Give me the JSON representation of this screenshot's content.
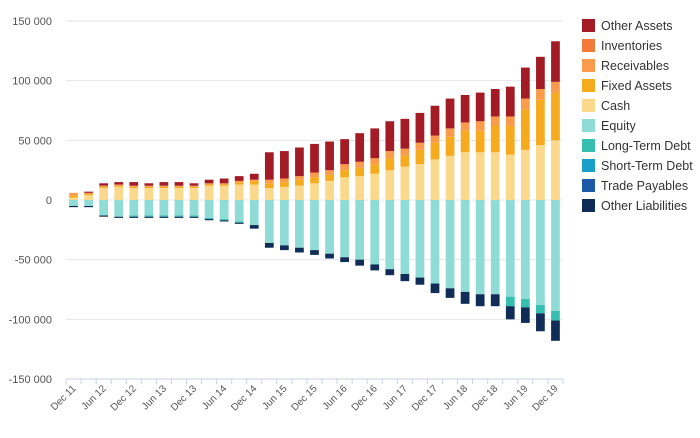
{
  "chart_data": {
    "type": "bar",
    "stacked": true,
    "title": "",
    "xlabel": "",
    "ylabel": "",
    "ylim": [
      -150000,
      150000
    ],
    "y_ticks": [
      150000,
      100000,
      50000,
      0,
      -50000,
      -100000,
      -150000
    ],
    "y_tick_labels": [
      "150 000",
      "100 000",
      "50 000",
      "0",
      "-50 000",
      "-100 000",
      "-150 000"
    ],
    "grid": true,
    "legend_position": "right",
    "categories": [
      "Dec 11",
      "Mar 12",
      "Jun 12",
      "Sep 12",
      "Dec 12",
      "Mar 13",
      "Jun 13",
      "Sep 13",
      "Dec 13",
      "Mar 14",
      "Jun 14",
      "Sep 14",
      "Dec 14",
      "Mar 15",
      "Jun 15",
      "Sep 15",
      "Dec 15",
      "Mar 16",
      "Jun 16",
      "Sep 16",
      "Dec 16",
      "Mar 17",
      "Jun 17",
      "Sep 17",
      "Dec 17",
      "Mar 18",
      "Jun 18",
      "Sep 18",
      "Dec 18",
      "Mar 19",
      "Jun 19",
      "Sep 19",
      "Dec 19"
    ],
    "x_tick_labels": [
      "Dec 11",
      "Jun 12",
      "Dec 12",
      "Jun 13",
      "Dec 13",
      "Jun 14",
      "Dec 14",
      "Jun 15",
      "Dec 15",
      "Jun 16",
      "Dec 16",
      "Jun 17",
      "Dec 17",
      "Jun 18",
      "Dec 18",
      "Jun 19",
      "Dec 19"
    ],
    "legend_order": [
      "Other Assets",
      "Inventories",
      "Receivables",
      "Fixed Assets",
      "Cash",
      "Equity",
      "Long-Term Debt",
      "Short-Term Debt",
      "Trade Payables",
      "Other Liabilities"
    ],
    "series": [
      {
        "name": "Cash",
        "color": "#fad88c",
        "values": [
          2000,
          4000,
          10000,
          11000,
          10000,
          10000,
          10000,
          10000,
          10000,
          12000,
          12000,
          13000,
          13000,
          10000,
          11000,
          12000,
          14000,
          16000,
          19000,
          20000,
          22000,
          25000,
          28000,
          30000,
          34000,
          37000,
          40000,
          40000,
          40000,
          38000,
          42000,
          46000,
          50000
        ]
      },
      {
        "name": "Fixed Assets",
        "color": "#f5ab1d",
        "values": [
          2000,
          1000,
          1000,
          1000,
          1000,
          1000,
          1000,
          1000,
          1000,
          1000,
          1000,
          2000,
          3000,
          4000,
          4000,
          5000,
          5000,
          5000,
          6000,
          7000,
          8000,
          10000,
          9000,
          12000,
          14000,
          16000,
          18000,
          18000,
          22000,
          24000,
          34000,
          38000,
          40000
        ]
      },
      {
        "name": "Receivables",
        "color": "#f99b4b",
        "values": [
          2000,
          1000,
          1000,
          1000,
          1000,
          1000,
          1000,
          1000,
          1000,
          1000,
          1000,
          1000,
          1000,
          3000,
          3000,
          3000,
          4000,
          4000,
          5000,
          5000,
          5000,
          6000,
          6000,
          6000,
          6000,
          7000,
          7000,
          8000,
          8000,
          8000,
          9000,
          9000,
          9000
        ]
      },
      {
        "name": "Inventories",
        "color": "#f47a3c",
        "values": [
          0,
          0,
          0,
          0,
          0,
          0,
          0,
          0,
          0,
          0,
          0,
          0,
          0,
          0,
          0,
          0,
          0,
          0,
          0,
          0,
          0,
          0,
          0,
          0,
          0,
          0,
          0,
          0,
          0,
          0,
          0,
          0,
          0
        ]
      },
      {
        "name": "Other Assets",
        "color": "#a31c25",
        "values": [
          0,
          1000,
          2000,
          2000,
          3000,
          2000,
          3000,
          3000,
          2000,
          3000,
          4000,
          4000,
          5000,
          23000,
          23000,
          24000,
          24000,
          24000,
          21000,
          24000,
          25000,
          25000,
          25000,
          25000,
          25000,
          25000,
          23000,
          24000,
          23000,
          25000,
          26000,
          27000,
          34000
        ]
      },
      {
        "name": "Equity",
        "color": "#8fdcd6",
        "values": [
          -5000,
          -5000,
          -13000,
          -14000,
          -13000,
          -13000,
          -13000,
          -13000,
          -13000,
          -15000,
          -16000,
          -18000,
          -21000,
          -36000,
          -38000,
          -40000,
          -42000,
          -45000,
          -48000,
          -50000,
          -54000,
          -58000,
          -62000,
          -65000,
          -70000,
          -74000,
          -77000,
          -79000,
          -79000,
          -81000,
          -83000,
          -88000,
          -93000
        ]
      },
      {
        "name": "Long-Term Debt",
        "color": "#36bfb0",
        "values": [
          0,
          0,
          0,
          0,
          -1000,
          -1000,
          -1000,
          -1000,
          -1000,
          -1000,
          -1000,
          -1000,
          0,
          0,
          0,
          0,
          0,
          0,
          0,
          0,
          0,
          0,
          0,
          0,
          0,
          0,
          0,
          0,
          0,
          -8000,
          -7000,
          -7000,
          -8000
        ]
      },
      {
        "name": "Short-Term Debt",
        "color": "#1aa0c8",
        "values": [
          0,
          0,
          0,
          0,
          0,
          0,
          0,
          0,
          0,
          0,
          0,
          0,
          0,
          0,
          0,
          0,
          0,
          0,
          0,
          0,
          0,
          0,
          0,
          0,
          0,
          0,
          0,
          0,
          0,
          0,
          0,
          0,
          0
        ]
      },
      {
        "name": "Trade Payables",
        "color": "#1c5aa8",
        "values": [
          0,
          0,
          0,
          0,
          0,
          0,
          0,
          0,
          0,
          0,
          0,
          0,
          0,
          0,
          0,
          0,
          0,
          0,
          0,
          0,
          0,
          0,
          0,
          0,
          0,
          0,
          0,
          0,
          0,
          0,
          0,
          0,
          0
        ]
      },
      {
        "name": "Other Liabilities",
        "color": "#0f2d56",
        "values": [
          -1000,
          -1000,
          -1000,
          -1000,
          -1000,
          -1000,
          -1000,
          -1000,
          -1000,
          -1000,
          -1000,
          -1000,
          -3000,
          -4000,
          -4000,
          -4000,
          -4000,
          -4000,
          -4000,
          -5000,
          -5000,
          -5000,
          -6000,
          -6000,
          -8000,
          -8000,
          -10000,
          -10000,
          -10000,
          -11000,
          -13000,
          -15000,
          -17000
        ]
      }
    ]
  }
}
